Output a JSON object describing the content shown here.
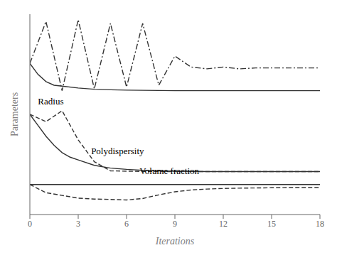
{
  "chart_data": {
    "type": "line",
    "title": "",
    "xlabel": "Iterations",
    "ylabel": "Parameters",
    "xlim": [
      0,
      18
    ],
    "ylim": [
      -0.05,
      1.05
    ],
    "xticks": [
      0,
      3,
      6,
      9,
      12,
      15,
      18
    ],
    "tick_labels": "x",
    "grid": false,
    "series": [
      {
        "color": "#333333",
        "line_style": "solid",
        "x": [
          0,
          0.5,
          1,
          1.5,
          2,
          3,
          4,
          5,
          6,
          7,
          8,
          9,
          10,
          11,
          12,
          13,
          14,
          15,
          16,
          17,
          18
        ],
        "values": [
          0.78,
          0.72,
          0.68,
          0.66,
          0.655,
          0.645,
          0.638,
          0.635,
          0.633,
          0.632,
          0.631,
          0.63,
          0.63,
          0.63,
          0.63,
          0.63,
          0.63,
          0.63,
          0.63,
          0.63,
          0.63
        ]
      },
      {
        "color": "#333333",
        "line_style": "dashdot",
        "x": [
          0,
          1,
          2,
          3,
          4,
          5,
          6,
          7,
          8,
          9,
          10,
          11,
          12,
          13,
          14,
          15,
          16,
          17,
          18
        ],
        "values": [
          0.78,
          1.01,
          0.63,
          1.02,
          0.64,
          1.0,
          0.65,
          1.0,
          0.66,
          0.82,
          0.76,
          0.75,
          0.76,
          0.75,
          0.755,
          0.755,
          0.755,
          0.755,
          0.755
        ]
      },
      {
        "color": "#333333",
        "line_style": "solid",
        "x": [
          0,
          0.5,
          1,
          1.5,
          2,
          2.5,
          3,
          4,
          5,
          6,
          7,
          8,
          9,
          10,
          11,
          12,
          13,
          14,
          15,
          16,
          17,
          18
        ],
        "values": [
          0.5,
          0.44,
          0.38,
          0.33,
          0.29,
          0.265,
          0.25,
          0.22,
          0.205,
          0.198,
          0.193,
          0.19,
          0.188,
          0.187,
          0.186,
          0.186,
          0.186,
          0.186,
          0.186,
          0.186,
          0.186,
          0.186
        ]
      },
      {
        "color": "#333333",
        "line_style": "dashed",
        "x": [
          0,
          1,
          2,
          3,
          4,
          5,
          6,
          7,
          8,
          9,
          10,
          11,
          12,
          13,
          14,
          15,
          16,
          17,
          18
        ],
        "values": [
          0.5,
          0.46,
          0.52,
          0.36,
          0.24,
          0.19,
          0.188,
          0.187,
          0.186,
          0.186,
          0.186,
          0.186,
          0.186,
          0.186,
          0.186,
          0.186,
          0.186,
          0.186,
          0.186
        ]
      },
      {
        "color": "#333333",
        "line_style": "solid",
        "x": [
          0,
          1,
          2,
          3,
          4,
          5,
          6,
          7,
          8,
          9,
          10,
          11,
          12,
          13,
          14,
          15,
          16,
          17,
          18
        ],
        "values": [
          0.115,
          0.115,
          0.115,
          0.115,
          0.115,
          0.115,
          0.115,
          0.115,
          0.115,
          0.115,
          0.115,
          0.115,
          0.115,
          0.115,
          0.115,
          0.115,
          0.115,
          0.115,
          0.115
        ]
      },
      {
        "color": "#333333",
        "line_style": "dashed",
        "x": [
          0,
          1,
          2,
          3,
          4,
          5,
          6,
          7,
          8,
          9,
          10,
          11,
          12,
          13,
          14,
          15,
          16,
          17,
          18
        ],
        "values": [
          0.115,
          0.07,
          0.055,
          0.04,
          0.035,
          0.033,
          0.03,
          0.038,
          0.058,
          0.075,
          0.085,
          0.09,
          0.093,
          0.095,
          0.096,
          0.097,
          0.098,
          0.098,
          0.098
        ]
      }
    ],
    "annotations": [
      {
        "text": "Radius",
        "x": 0.5,
        "y": 0.545
      },
      {
        "text": "Polydispersity",
        "x": 3.8,
        "y": 0.275
      },
      {
        "text": "Volume fraction",
        "x": 6.8,
        "y": 0.165
      }
    ]
  }
}
